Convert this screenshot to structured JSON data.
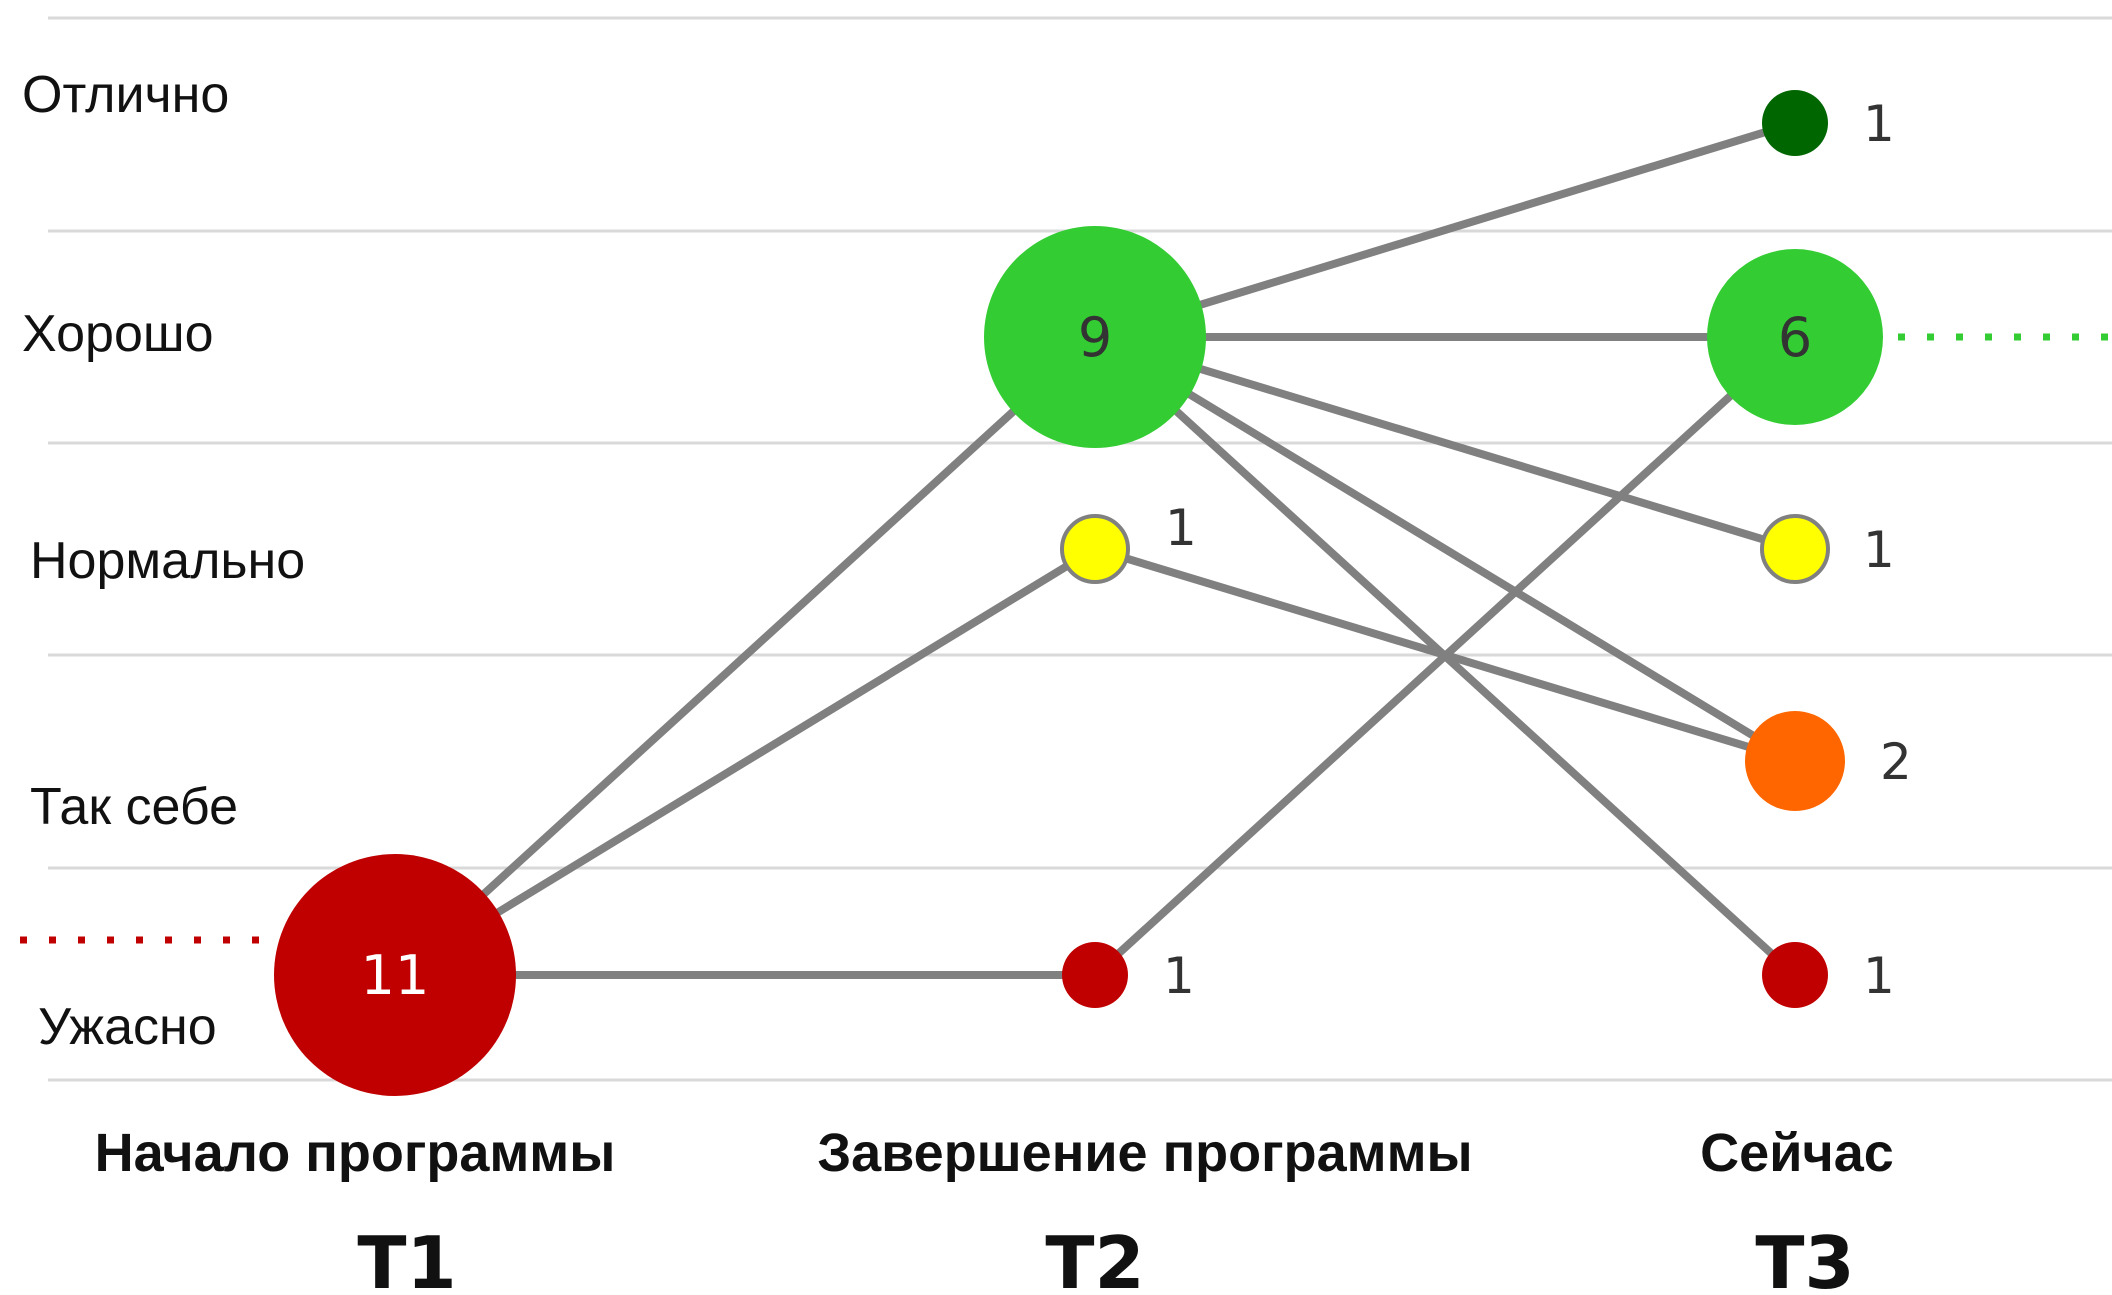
{
  "chart_data": {
    "type": "flow",
    "title": "",
    "categories": [
      "Отлично",
      "Хорошо",
      "Нормально",
      "Так себе",
      "Ужасно"
    ],
    "time_points": [
      {
        "label": "Начало программы",
        "code": "T1"
      },
      {
        "label": "Завершение программы",
        "code": "T2"
      },
      {
        "label": "Сейчас",
        "code": "T3"
      }
    ],
    "nodes": [
      {
        "id": "t1-uzhasno",
        "time": 0,
        "category": "Ужасно",
        "count": 11,
        "color": "#C00000",
        "label_inside": true
      },
      {
        "id": "t2-horosho",
        "time": 1,
        "category": "Хорошо",
        "count": 9,
        "color": "#33CC33",
        "label_inside": true
      },
      {
        "id": "t2-normalno",
        "time": 1,
        "category": "Нормально",
        "count": 1,
        "color": "#FFFF00",
        "label_inside": false
      },
      {
        "id": "t2-uzhasno",
        "time": 1,
        "category": "Ужасно",
        "count": 1,
        "color": "#C00000",
        "label_inside": false
      },
      {
        "id": "t3-otlichno",
        "time": 2,
        "category": "Отлично",
        "count": 1,
        "color": "#006600",
        "label_inside": false
      },
      {
        "id": "t3-horosho",
        "time": 2,
        "category": "Хорошо",
        "count": 6,
        "color": "#33CC33",
        "label_inside": true
      },
      {
        "id": "t3-normalno",
        "time": 2,
        "category": "Нормально",
        "count": 1,
        "color": "#FFFF00",
        "label_inside": false
      },
      {
        "id": "t3-tak-sebe",
        "time": 2,
        "category": "Так себе",
        "count": 2,
        "color": "#FF6600",
        "label_inside": false
      },
      {
        "id": "t3-uzhasno",
        "time": 2,
        "category": "Ужасно",
        "count": 1,
        "color": "#C00000",
        "label_inside": false
      }
    ],
    "links": [
      {
        "from": "t1-uzhasno",
        "to": "t2-horosho"
      },
      {
        "from": "t1-uzhasno",
        "to": "t2-normalno"
      },
      {
        "from": "t1-uzhasno",
        "to": "t2-uzhasno"
      },
      {
        "from": "t2-horosho",
        "to": "t3-otlichno"
      },
      {
        "from": "t2-horosho",
        "to": "t3-horosho"
      },
      {
        "from": "t2-horosho",
        "to": "t3-normalno"
      },
      {
        "from": "t2-horosho",
        "to": "t3-tak-sebe"
      },
      {
        "from": "t2-horosho",
        "to": "t3-uzhasno"
      },
      {
        "from": "t2-normalno",
        "to": "t3-tak-sebe"
      },
      {
        "from": "t2-uzhasno",
        "to": "t3-horosho"
      }
    ],
    "reference_lines": [
      {
        "category": "Ужасно",
        "color": "#C00000",
        "style": "dotted",
        "side": "left"
      },
      {
        "category": "Хорошо",
        "color": "#33CC33",
        "style": "dotted",
        "side": "right"
      }
    ],
    "grid": true,
    "link_color": "#808080",
    "grid_color": "#D9D9D9",
    "node_outline_color": "#808080"
  }
}
